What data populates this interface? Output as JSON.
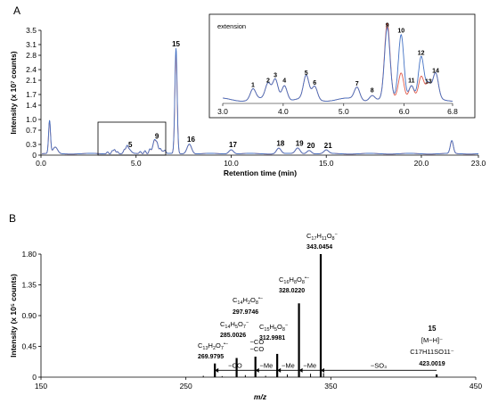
{
  "chart_data": [
    {
      "panel": "A",
      "type": "line",
      "xlabel": "Retention time (min)",
      "ylabel": "Intensity (x 10⁷ counts)",
      "xlim": [
        0,
        23
      ],
      "ylim": [
        0,
        3.5
      ],
      "xticks": [
        "0.0",
        "5.0",
        "10.0",
        "15.0",
        "20.0",
        "23.0"
      ],
      "yticks": [
        "0",
        "0.3",
        "0.7",
        "1.0",
        "1.4",
        "1.7",
        "2.1",
        "2.4",
        "2.8",
        "3.1",
        "3.5"
      ],
      "colors": {
        "series_a": "#4472c4",
        "series_b": "#e05a4a"
      },
      "peaks": [
        {
          "label": "5",
          "x": 4.6,
          "y": 0.13
        },
        {
          "label": "9",
          "x": 6.0,
          "y": 0.36
        },
        {
          "label": "15",
          "x": 7.1,
          "y": 2.95
        },
        {
          "label": "16",
          "x": 7.8,
          "y": 0.28
        },
        {
          "label": "17",
          "x": 10.0,
          "y": 0.12
        },
        {
          "label": "18",
          "x": 12.5,
          "y": 0.16
        },
        {
          "label": "19",
          "x": 13.5,
          "y": 0.16
        },
        {
          "label": "20",
          "x": 14.1,
          "y": 0.1
        },
        {
          "label": "21",
          "x": 15.0,
          "y": 0.1
        }
      ],
      "inset": {
        "title": "extension",
        "xlim": [
          3.0,
          6.8
        ],
        "xticks": [
          "3.0",
          "4.0",
          "5.0",
          "6.0",
          "6.8"
        ],
        "peaks": [
          {
            "label": "1",
            "x": 3.5
          },
          {
            "label": "2",
            "x": 3.75
          },
          {
            "label": "3",
            "x": 3.87
          },
          {
            "label": "4",
            "x": 4.02
          },
          {
            "label": "5",
            "x": 4.38
          },
          {
            "label": "6",
            "x": 4.52
          },
          {
            "label": "7",
            "x": 5.22
          },
          {
            "label": "8",
            "x": 5.47
          },
          {
            "label": "9",
            "x": 5.72
          },
          {
            "label": "10",
            "x": 5.95
          },
          {
            "label": "11",
            "x": 6.12
          },
          {
            "label": "12",
            "x": 6.28
          },
          {
            "label": "13",
            "x": 6.4
          },
          {
            "label": "14",
            "x": 6.52
          }
        ]
      }
    },
    {
      "panel": "B",
      "type": "bar",
      "xlabel": "m/z",
      "ylabel": "Intensity (x 10⁵ counts)",
      "xlim": [
        150,
        450
      ],
      "ylim": [
        0,
        1.8
      ],
      "xticks": [
        "150",
        "250",
        "350",
        "450"
      ],
      "yticks": [
        "0",
        "0.45",
        "0.90",
        "1.35",
        "1.80"
      ],
      "sticks": [
        {
          "mz": 269.9795,
          "y": 0.2
        },
        {
          "mz": 285.0026,
          "y": 0.28
        },
        {
          "mz": 297.9746,
          "y": 0.3
        },
        {
          "mz": 312.9981,
          "y": 0.34
        },
        {
          "mz": 328.022,
          "y": 1.08
        },
        {
          "mz": 343.0454,
          "y": 1.8
        },
        {
          "mz": 423.0019,
          "y": 0.04
        }
      ],
      "ion_labels": {
        "i343": {
          "formula": "C",
          "s1": "17",
          "m1": "H",
          "s2": "11",
          "m2": "O",
          "s3": "8",
          "charge": "−",
          "mass": "343.0454"
        },
        "i328": {
          "formula": "C",
          "s1": "16",
          "m1": "H",
          "s2": "8",
          "m2": "O",
          "s3": "8",
          "charge": "•−",
          "mass": "328.0220"
        },
        "i298": {
          "formula": "C",
          "s1": "14",
          "m1": "H",
          "s2": "2",
          "m2": "O",
          "s3": "8",
          "charge": "•−",
          "mass": "297.9746"
        },
        "i313": {
          "formula": "C",
          "s1": "15",
          "m1": "H",
          "s2": "5",
          "m2": "O",
          "s3": "8",
          "charge": "−",
          "mass": "312.9981"
        },
        "i285": {
          "formula": "C",
          "s1": "14",
          "m1": "H",
          "s2": "5",
          "m2": "O",
          "s3": "7",
          "charge": "−",
          "mass": "285.0026"
        },
        "i270": {
          "formula": "C",
          "s1": "13",
          "m1": "H",
          "s2": "2",
          "m2": "O",
          "s3": "7",
          "charge": "•−",
          "mass": "269.9795"
        }
      },
      "precursor": {
        "compound": "15",
        "ion": "[M−H]⁻",
        "formula": "C17H11SO11⁻",
        "mass": "423.0019"
      },
      "losses": {
        "so3": "−SO₃",
        "me1": "−Me",
        "me2": "−Me",
        "me3": "−Me",
        "co1": "−CO",
        "co2": "−CO",
        "co_me": "−CO"
      }
    }
  ]
}
